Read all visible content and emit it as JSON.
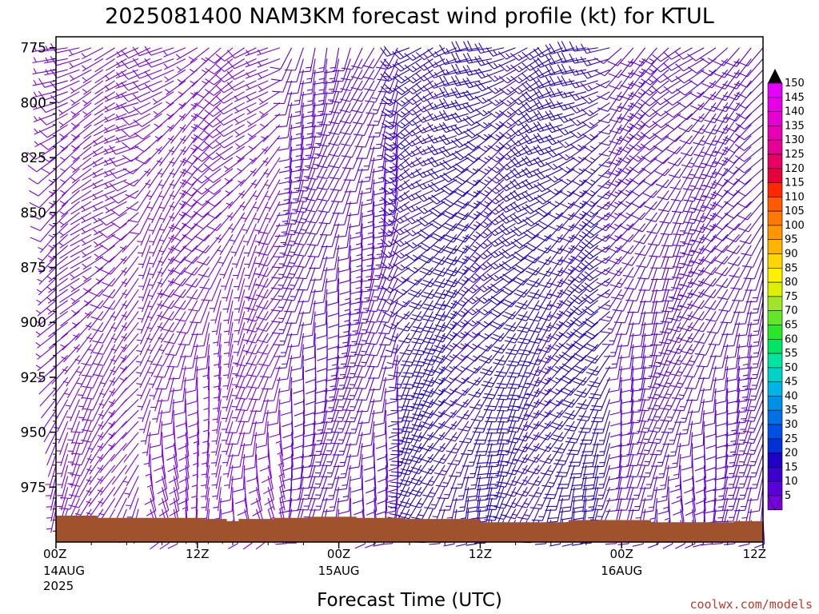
{
  "title": "2025081400 NAM3KM forecast wind profile (kt) for KTUL",
  "xlabel": "Forecast Time (UTC)",
  "credit": "coolwx.com/models",
  "chart_data": {
    "type": "wind_barbs",
    "title": "2025081400 NAM3KM forecast wind profile (kt) for KTUL",
    "xlabel": "Forecast Time (UTC)",
    "ylabel": "",
    "y_ticks": [
      775,
      800,
      825,
      850,
      875,
      900,
      925,
      950,
      975
    ],
    "ylim": [
      770,
      1000
    ],
    "y_inverted": true,
    "x_ticks": [
      {
        "hour": 0,
        "label": "00Z",
        "date": "14AUG",
        "year": "2025"
      },
      {
        "hour": 12,
        "label": "12Z",
        "date": "",
        "year": ""
      },
      {
        "hour": 24,
        "label": "00Z",
        "date": "15AUG",
        "year": ""
      },
      {
        "hour": 36,
        "label": "12Z",
        "date": "",
        "year": ""
      },
      {
        "hour": 48,
        "label": "00Z",
        "date": "16AUG",
        "year": ""
      },
      {
        "hour": 60,
        "label": "12Z",
        "date": "",
        "year": ""
      }
    ],
    "xlim_hours": [
      0,
      60
    ],
    "colorbar": {
      "units": "kt",
      "levels": [
        5,
        10,
        15,
        20,
        25,
        30,
        35,
        40,
        45,
        50,
        55,
        60,
        65,
        70,
        75,
        80,
        85,
        90,
        95,
        100,
        105,
        110,
        115,
        120,
        125,
        130,
        135,
        140,
        145,
        150
      ],
      "colors": [
        "#7a00e6",
        "#5a00d8",
        "#3c00cc",
        "#1e00c8",
        "#0030d8",
        "#0050e6",
        "#0070e6",
        "#0090e6",
        "#00b4e6",
        "#00d2c8",
        "#00e6a0",
        "#00e664",
        "#28e628",
        "#64e628",
        "#a0e628",
        "#dcf000",
        "#fff000",
        "#ffd700",
        "#ffb400",
        "#ff9600",
        "#ff7800",
        "#ff5a00",
        "#ff2800",
        "#e6003c",
        "#e60064",
        "#e60096",
        "#e600b4",
        "#e600d2",
        "#e600e6",
        "#e600ff"
      ]
    },
    "ground_pressure": [
      {
        "hour": 0,
        "p": 988
      },
      {
        "hour": 3.5,
        "p": 989
      },
      {
        "hour": 12.5,
        "p": 989.5
      },
      {
        "hour": 14.5,
        "p": 990.5
      },
      {
        "hour": 15.5,
        "p": 989.5
      },
      {
        "hour": 18.5,
        "p": 989
      },
      {
        "hour": 21.5,
        "p": 988.5
      },
      {
        "hour": 25.5,
        "p": 989
      },
      {
        "hour": 29.5,
        "p": 989.5
      },
      {
        "hour": 36,
        "p": 991
      },
      {
        "hour": 43.5,
        "p": 990
      },
      {
        "hour": 50.5,
        "p": 991
      },
      {
        "hour": 57.5,
        "p": 990.5
      },
      {
        "hour": 60,
        "p": 991
      }
    ],
    "wind_regimes": [
      {
        "hours": [
          0,
          8
        ],
        "dir_upper": 250,
        "dir_lower": 200,
        "speed": 7,
        "color_level": 5
      },
      {
        "hours": [
          8,
          20
        ],
        "dir_upper": 240,
        "dir_lower": 170,
        "speed": 9,
        "color_level": 5
      },
      {
        "hours": [
          20,
          30
        ],
        "dir_upper": 200,
        "dir_lower": 185,
        "speed": 14,
        "color_level": 10
      },
      {
        "hours": [
          30,
          48
        ],
        "dir_upper": 250,
        "dir_lower": 195,
        "speed": 19,
        "color_level": 15
      },
      {
        "hours": [
          48,
          60
        ],
        "dir_upper": 230,
        "dir_lower": 180,
        "speed": 14,
        "color_level": 10
      }
    ]
  }
}
